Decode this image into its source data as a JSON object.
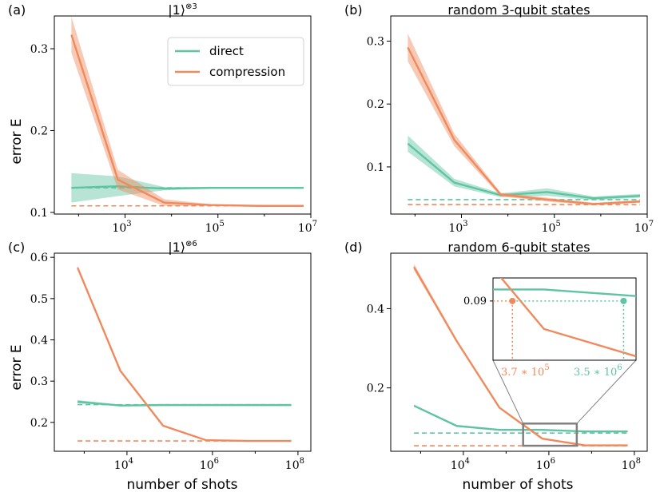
{
  "colors": {
    "direct": "#5fc4a0",
    "compression": "#f08a5d",
    "inset_box": "#808080"
  },
  "legend": {
    "direct": "direct",
    "compression": "compression"
  },
  "figure": {
    "x_label": "number of shots",
    "y_label": "error E"
  },
  "chart_data": [
    {
      "panel": "(a)",
      "title_ket": "|1⟩",
      "title_sup": "⊗3",
      "type": "line",
      "x_scale": "log",
      "xlim": [
        30,
        10000000
      ],
      "ylim": [
        0.098,
        0.34
      ],
      "x_ticks": [
        {
          "value": 1000,
          "base": "10",
          "exp": "3"
        },
        {
          "value": 100000,
          "base": "10",
          "exp": "5"
        },
        {
          "value": 10000000,
          "base": "10",
          "exp": "7"
        }
      ],
      "y_ticks": [
        {
          "value": 0.1,
          "label": "0.1"
        },
        {
          "value": 0.2,
          "label": "0.2"
        },
        {
          "value": 0.3,
          "label": "0.3"
        }
      ],
      "legend": true,
      "series": [
        {
          "name": "direct",
          "x": [
            70,
            700,
            7000,
            70000,
            700000,
            7000000
          ],
          "y": [
            0.13,
            0.132,
            0.129,
            0.13,
            0.13,
            0.13
          ],
          "band": [
            0.018,
            0.012,
            0.002,
            0.001,
            0.001,
            0.001
          ],
          "baseline": 0.13
        },
        {
          "name": "compression",
          "x": [
            70,
            700,
            7000,
            70000,
            700000,
            7000000
          ],
          "y": [
            0.317,
            0.14,
            0.112,
            0.109,
            0.108,
            0.108
          ],
          "band": [
            0.022,
            0.012,
            0.004,
            0.001,
            0.001,
            0.001
          ],
          "baseline": 0.108
        }
      ]
    },
    {
      "panel": "(b)",
      "title": "random 3-qubit states",
      "type": "line",
      "x_scale": "log",
      "xlim": [
        30,
        10000000
      ],
      "ylim": [
        0.025,
        0.34
      ],
      "x_ticks": [
        {
          "value": 1000,
          "base": "10",
          "exp": "3"
        },
        {
          "value": 100000,
          "base": "10",
          "exp": "5"
        },
        {
          "value": 10000000,
          "base": "10",
          "exp": "7"
        }
      ],
      "y_ticks": [
        {
          "value": 0.1,
          "label": "0.1"
        },
        {
          "value": 0.2,
          "label": "0.2"
        },
        {
          "value": 0.3,
          "label": "0.3"
        }
      ],
      "legend": false,
      "series": [
        {
          "name": "direct",
          "x": [
            70,
            700,
            7000,
            70000,
            700000,
            7000000
          ],
          "y": [
            0.137,
            0.075,
            0.055,
            0.06,
            0.05,
            0.054
          ],
          "band": [
            0.013,
            0.006,
            0.003,
            0.006,
            0.003,
            0.003
          ],
          "baseline": 0.048
        },
        {
          "name": "compression",
          "x": [
            70,
            700,
            7000,
            70000,
            700000,
            7000000
          ],
          "y": [
            0.29,
            0.143,
            0.056,
            0.048,
            0.041,
            0.045
          ],
          "band": [
            0.022,
            0.01,
            0.003,
            0.003,
            0.002,
            0.002
          ],
          "baseline": 0.04
        }
      ]
    },
    {
      "panel": "(c)",
      "title_ket": "|1⟩",
      "title_sup": "⊗6",
      "type": "line",
      "x_scale": "log",
      "xlim": [
        200,
        200000000
      ],
      "ylim": [
        0.13,
        0.61
      ],
      "x_ticks": [
        {
          "value": 10000,
          "base": "10",
          "exp": "4"
        },
        {
          "value": 1000000,
          "base": "10",
          "exp": "6"
        },
        {
          "value": 100000000,
          "base": "10",
          "exp": "8"
        }
      ],
      "y_ticks": [
        {
          "value": 0.2,
          "label": "0.2"
        },
        {
          "value": 0.3,
          "label": "0.3"
        },
        {
          "value": 0.4,
          "label": "0.4"
        },
        {
          "value": 0.5,
          "label": "0.5"
        },
        {
          "value": 0.6,
          "label": "0.6"
        }
      ],
      "legend": false,
      "series": [
        {
          "name": "direct",
          "x": [
            700,
            7000,
            70000,
            700000,
            7000000,
            70000000
          ],
          "y": [
            0.25,
            0.241,
            0.242,
            0.242,
            0.242,
            0.242
          ],
          "band": [
            0.004,
            0.002,
            0.001,
            0.001,
            0.001,
            0.001
          ],
          "baseline": 0.243
        },
        {
          "name": "compression",
          "x": [
            700,
            7000,
            70000,
            700000,
            7000000,
            70000000
          ],
          "y": [
            0.575,
            0.325,
            0.192,
            0.157,
            0.155,
            0.155
          ],
          "band": [
            0.005,
            0.003,
            0.002,
            0.001,
            0.001,
            0.001
          ],
          "baseline": 0.155
        }
      ]
    },
    {
      "panel": "(d)",
      "title": "random 6-qubit states",
      "type": "line",
      "x_scale": "log",
      "xlim": [
        200,
        200000000
      ],
      "ylim": [
        0.04,
        0.54
      ],
      "x_ticks": [
        {
          "value": 10000,
          "base": "10",
          "exp": "4"
        },
        {
          "value": 1000000,
          "base": "10",
          "exp": "6"
        },
        {
          "value": 100000000,
          "base": "10",
          "exp": "8"
        }
      ],
      "y_ticks": [
        {
          "value": 0.2,
          "label": "0.2"
        },
        {
          "value": 0.4,
          "label": "0.4"
        }
      ],
      "legend": false,
      "series": [
        {
          "name": "direct",
          "x": [
            700,
            7000,
            70000,
            700000,
            7000000,
            70000000
          ],
          "y": [
            0.155,
            0.104,
            0.094,
            0.094,
            0.09,
            0.09
          ],
          "band": [
            0.002,
            0.002,
            0.001,
            0.001,
            0.001,
            0.001
          ],
          "baseline": 0.086
        },
        {
          "name": "compression",
          "x": [
            700,
            7000,
            70000,
            700000,
            7000000,
            70000000
          ],
          "y": [
            0.505,
            0.318,
            0.15,
            0.072,
            0.055,
            0.055
          ],
          "band": [
            0.008,
            0.004,
            0.002,
            0.001,
            0.001,
            0.001
          ],
          "baseline": 0.054
        }
      ],
      "zoom_box": {
        "x": [
          250000,
          4500000
        ],
        "y": [
          0.054,
          0.11
        ]
      },
      "inset": {
        "y_tick": "0.09",
        "level": 0.09,
        "compression_cross": {
          "x": 370000,
          "label": "3.7 ∗ 10",
          "exp": "5"
        },
        "direct_cross": {
          "x": 3500000,
          "label": "3.5 ∗ 10",
          "exp": "6"
        }
      }
    }
  ]
}
